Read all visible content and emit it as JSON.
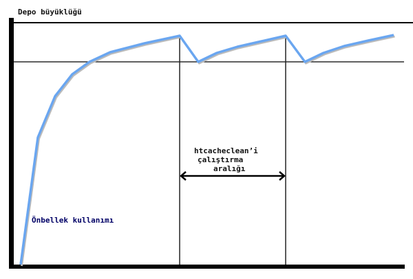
{
  "y_axis_label": "Depo büyüklüğü",
  "series_label": "Önbellek kullanımı",
  "interval_label": [
    "htcacheclean’i",
    "çalıştırma",
    "aralığı"
  ],
  "colors": {
    "curve": "#6aa6f0",
    "axis": "#000000",
    "label_blue": "#000066"
  }
}
